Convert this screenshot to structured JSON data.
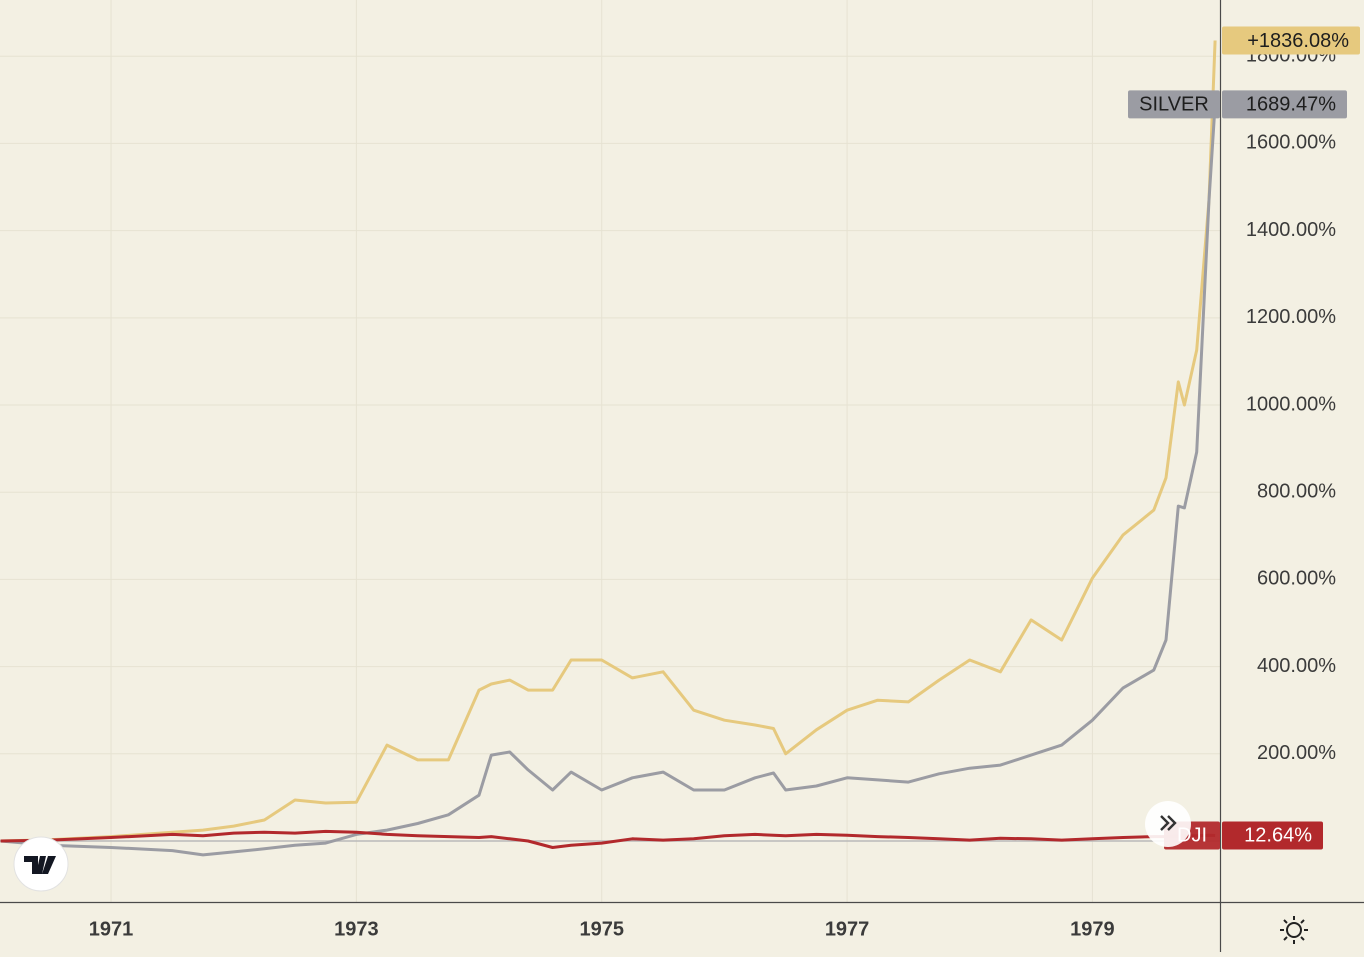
{
  "chart_data": {
    "type": "line",
    "x": [
      1970.1,
      1970.5,
      1971,
      1971.5,
      1971.75,
      1972,
      1972.25,
      1972.5,
      1972.75,
      1973,
      1973.25,
      1973.5,
      1973.75,
      1974,
      1974.1,
      1974.25,
      1974.4,
      1974.6,
      1974.75,
      1975,
      1975.25,
      1975.5,
      1975.75,
      1976,
      1976.25,
      1976.4,
      1976.5,
      1976.75,
      1977,
      1977.25,
      1977.5,
      1977.75,
      1978,
      1978.25,
      1978.5,
      1978.75,
      1979,
      1979.25,
      1979.5,
      1979.6,
      1979.7,
      1979.75,
      1979.85,
      1979.95,
      1980.0
    ],
    "xlim": [
      1970.095,
      1980.04
    ],
    "xticks": [
      1971,
      1973,
      1975,
      1977,
      1979
    ],
    "ylim": [
      -140,
      1929
    ],
    "yticks": [
      {
        "value": 200,
        "label": "200.00%"
      },
      {
        "value": 400,
        "label": "400.00%"
      },
      {
        "value": 600,
        "label": "600.00%"
      },
      {
        "value": 800,
        "label": "800.00%"
      },
      {
        "value": 1000,
        "label": "1000.00%"
      },
      {
        "value": 1200,
        "label": "1200.00%"
      },
      {
        "value": 1400,
        "label": "1400.00%"
      },
      {
        "value": 1600,
        "label": "1600.00%"
      },
      {
        "value": 1800,
        "label": "1800.00%"
      }
    ],
    "grid": true,
    "series": [
      {
        "color": "#e6c97e",
        "values": [
          0,
          3,
          10,
          20,
          25,
          34,
          48,
          94,
          87,
          89,
          220,
          186,
          186,
          346,
          360,
          369,
          346,
          346,
          415,
          415,
          374,
          388,
          300,
          277,
          266,
          258,
          200,
          255,
          300,
          323,
          319,
          369,
          415,
          388,
          507,
          461,
          603,
          702,
          759,
          833,
          1053,
          1000,
          1126,
          1470,
          1836.08
        ],
        "value_labels": [
          null,
          null,
          null,
          null,
          null,
          null,
          null,
          null,
          null,
          null,
          null,
          null,
          null,
          null,
          null,
          null,
          null,
          null,
          null,
          null,
          null,
          null,
          null,
          null,
          null,
          null,
          null,
          null,
          null,
          null,
          null,
          null,
          null,
          null,
          null,
          null,
          null,
          null,
          null,
          null,
          null,
          null,
          null,
          null,
          "+1836.08%"
        ]
      },
      {
        "name": "SILVER",
        "color": "#9b9ca3",
        "values": [
          0,
          -10,
          -15,
          -22,
          -32,
          -25,
          -18,
          -10,
          -5,
          15,
          25,
          40,
          60,
          105,
          197,
          204,
          163,
          117,
          158,
          117,
          145,
          158,
          117,
          117,
          145,
          156,
          117,
          126,
          145,
          140,
          135,
          154,
          167,
          174,
          197,
          220,
          277,
          351,
          392,
          461,
          768,
          764,
          892,
          1470,
          1689.47
        ],
        "value_labels": [
          null,
          null,
          null,
          null,
          null,
          null,
          null,
          null,
          null,
          null,
          null,
          null,
          null,
          null,
          null,
          null,
          null,
          null,
          null,
          null,
          null,
          null,
          null,
          null,
          null,
          null,
          null,
          null,
          null,
          null,
          null,
          null,
          null,
          null,
          null,
          null,
          null,
          null,
          null,
          null,
          null,
          null,
          null,
          null,
          "1689.47%"
        ]
      },
      {
        "name": "DJI",
        "color": "#b2292c",
        "values": [
          0,
          2,
          8,
          15,
          12,
          18,
          20,
          18,
          22,
          20,
          15,
          12,
          10,
          8,
          10,
          5,
          0,
          -15,
          -10,
          -5,
          5,
          2,
          5,
          12,
          15,
          13,
          12,
          15,
          13,
          10,
          8,
          5,
          2,
          6,
          5,
          2,
          5,
          8,
          10,
          10,
          11,
          12,
          12,
          13,
          12.64
        ],
        "value_labels": [
          null,
          null,
          null,
          null,
          null,
          null,
          null,
          null,
          null,
          null,
          null,
          null,
          null,
          null,
          null,
          null,
          null,
          null,
          null,
          null,
          null,
          null,
          null,
          null,
          null,
          null,
          null,
          null,
          null,
          null,
          null,
          null,
          null,
          null,
          null,
          null,
          null,
          null,
          null,
          null,
          null,
          null,
          null,
          null,
          "12.64%"
        ]
      }
    ]
  }
}
